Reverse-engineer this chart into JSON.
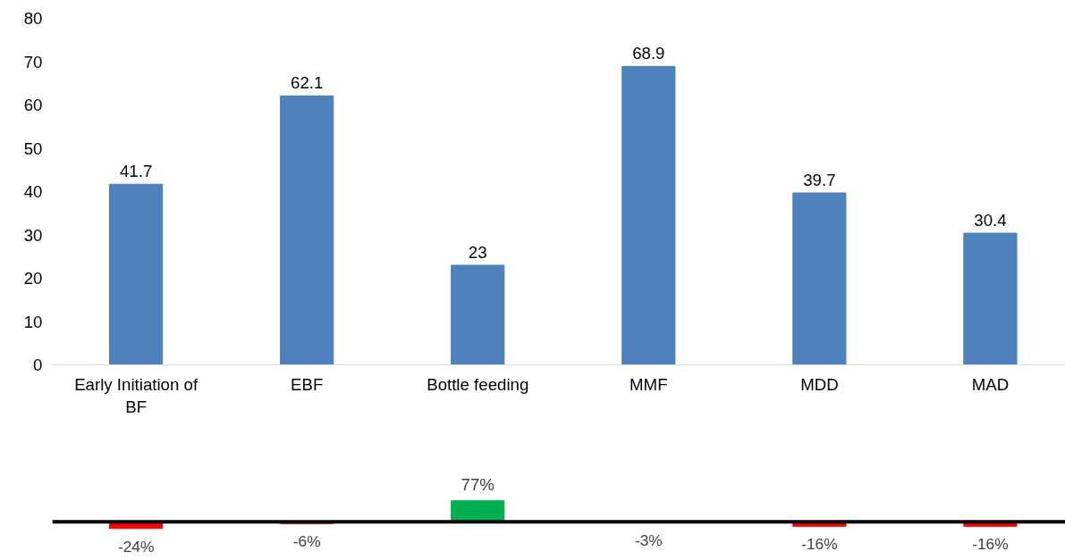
{
  "chart_data": [
    {
      "type": "bar",
      "categories": [
        "Early Initiation of\nBF",
        "EBF",
        "Bottle feeding",
        "MMF",
        "MDD",
        "MAD"
      ],
      "values": [
        41.7,
        62.1,
        23,
        68.9,
        39.7,
        30.4
      ],
      "color": "#4f81bd",
      "ylim": [
        0,
        80
      ],
      "yticks": [
        0,
        10,
        20,
        30,
        40,
        50,
        60,
        70,
        80
      ],
      "grid": false,
      "data_labels": true
    },
    {
      "type": "bar",
      "categories": [
        null,
        null,
        null,
        null,
        null,
        null
      ],
      "values": [
        -24,
        -6,
        77,
        -3,
        -16,
        -16
      ],
      "colors": [
        "#ff0000",
        "#ff0000",
        "#00b050",
        "#ff0000",
        "#ff0000",
        "#ff0000"
      ],
      "value_labels": [
        "-24%",
        "-6%",
        "77%",
        "-3%",
        "-16%",
        "-16%"
      ],
      "tick_labels": false,
      "grid": false,
      "ref_lines": [
        {
          "axis": "y",
          "value": 0,
          "color": "#000000"
        }
      ]
    }
  ]
}
